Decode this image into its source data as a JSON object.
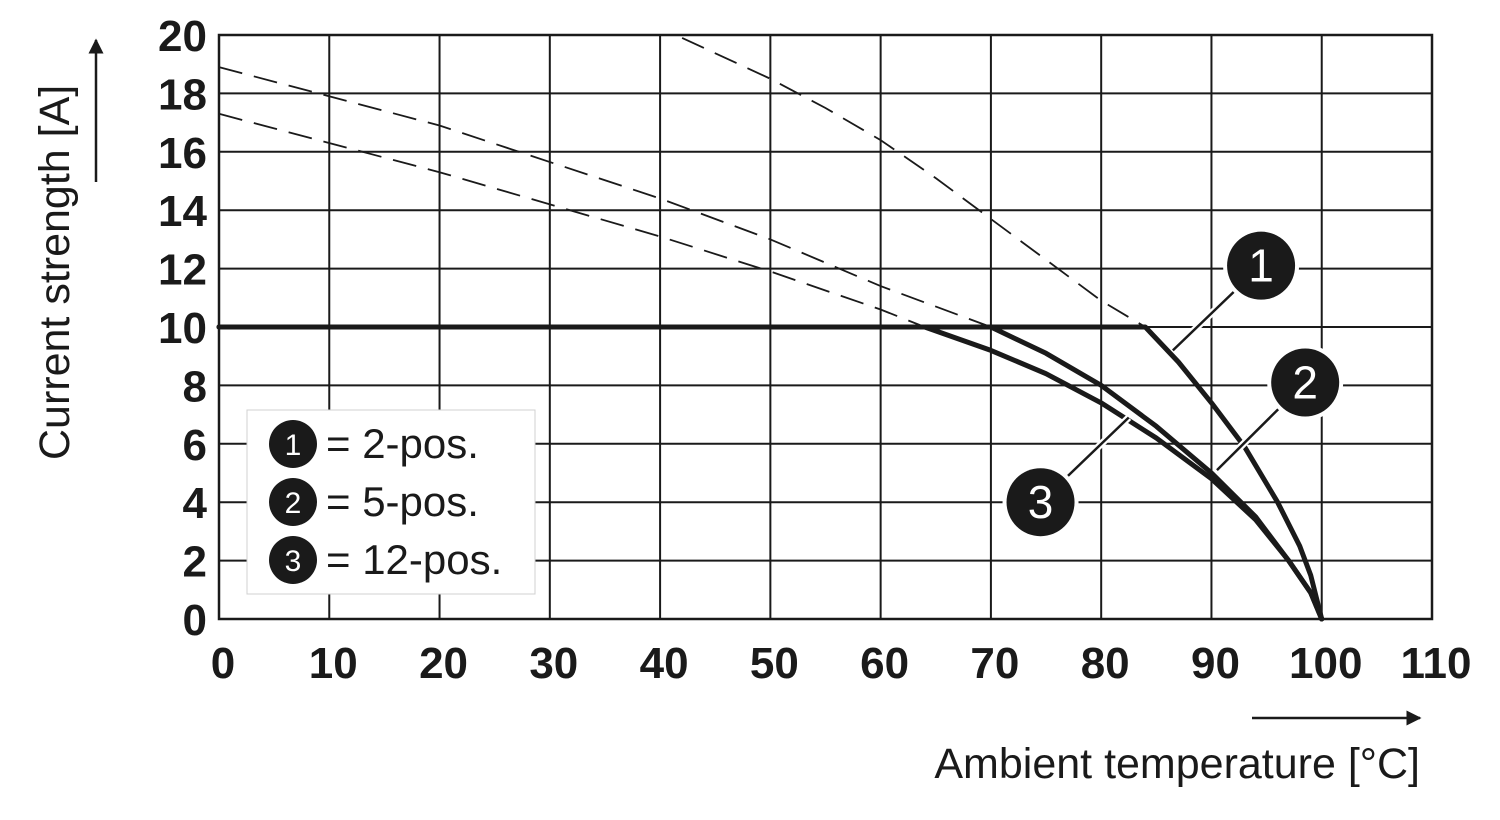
{
  "chart_data": {
    "type": "line",
    "xlabel": "Ambient temperature [°C]",
    "ylabel": "Current strength [A]",
    "xlim": [
      0,
      110
    ],
    "ylim": [
      0,
      20
    ],
    "x_ticks": [
      0,
      10,
      20,
      30,
      40,
      50,
      60,
      70,
      80,
      90,
      100,
      110
    ],
    "y_ticks": [
      0,
      2,
      4,
      6,
      8,
      10,
      12,
      14,
      16,
      18,
      20
    ],
    "grid": true,
    "legend_position": "bottom-left",
    "legend": [
      {
        "marker": "1",
        "text": "= 2-pos."
      },
      {
        "marker": "2",
        "text": "= 5-pos."
      },
      {
        "marker": "3",
        "text": "= 12-pos."
      }
    ],
    "colors": {
      "line": "#1a1a1a",
      "badge": "#1a1a1a",
      "badge_text": "#ffffff"
    },
    "series": [
      {
        "marker": "1",
        "solid": [
          [
            0,
            10
          ],
          [
            84,
            10
          ],
          [
            87,
            8.8
          ],
          [
            90,
            7.4
          ],
          [
            93,
            5.9
          ],
          [
            96,
            4.0
          ],
          [
            98,
            2.5
          ],
          [
            99,
            1.5
          ],
          [
            100,
            0
          ]
        ],
        "dashed": [
          [
            42,
            19.9
          ],
          [
            50,
            18.5
          ],
          [
            55,
            17.5
          ],
          [
            60,
            16.4
          ],
          [
            65,
            15.1
          ],
          [
            70,
            13.7
          ],
          [
            75,
            12.3
          ],
          [
            80,
            10.9
          ],
          [
            84,
            10
          ]
        ]
      },
      {
        "marker": "2",
        "solid": [
          [
            0,
            10
          ],
          [
            70,
            10
          ],
          [
            75,
            9.1
          ],
          [
            80,
            8.0
          ],
          [
            85,
            6.6
          ],
          [
            90,
            5.0
          ],
          [
            94,
            3.5
          ],
          [
            97,
            2.0
          ],
          [
            99,
            0.9
          ],
          [
            100,
            0
          ]
        ],
        "dashed": [
          [
            0,
            18.9
          ],
          [
            20,
            16.9
          ],
          [
            40,
            14.4
          ],
          [
            50,
            13.0
          ],
          [
            60,
            11.4
          ],
          [
            70,
            10
          ]
        ]
      },
      {
        "marker": "3",
        "solid": [
          [
            0,
            10
          ],
          [
            64,
            10
          ],
          [
            70,
            9.2
          ],
          [
            75,
            8.4
          ],
          [
            80,
            7.4
          ],
          [
            85,
            6.2
          ],
          [
            90,
            4.8
          ],
          [
            94,
            3.4
          ],
          [
            97,
            2.0
          ],
          [
            99,
            0.9
          ],
          [
            100,
            0
          ]
        ],
        "dashed": [
          [
            0,
            17.3
          ],
          [
            20,
            15.3
          ],
          [
            40,
            13.1
          ],
          [
            50,
            11.9
          ],
          [
            60,
            10.6
          ],
          [
            64,
            10
          ]
        ]
      }
    ],
    "annotations": [
      {
        "marker": "1",
        "label_at": [
          94.5,
          12.1
        ],
        "leader_to": [
          86.5,
          9.2
        ]
      },
      {
        "marker": "2",
        "label_at": [
          98.5,
          8.1
        ],
        "leader_to": [
          90.5,
          5.1
        ]
      },
      {
        "marker": "3",
        "label_at": [
          74.5,
          4.0
        ],
        "leader_to": [
          82.5,
          6.9
        ]
      }
    ]
  }
}
